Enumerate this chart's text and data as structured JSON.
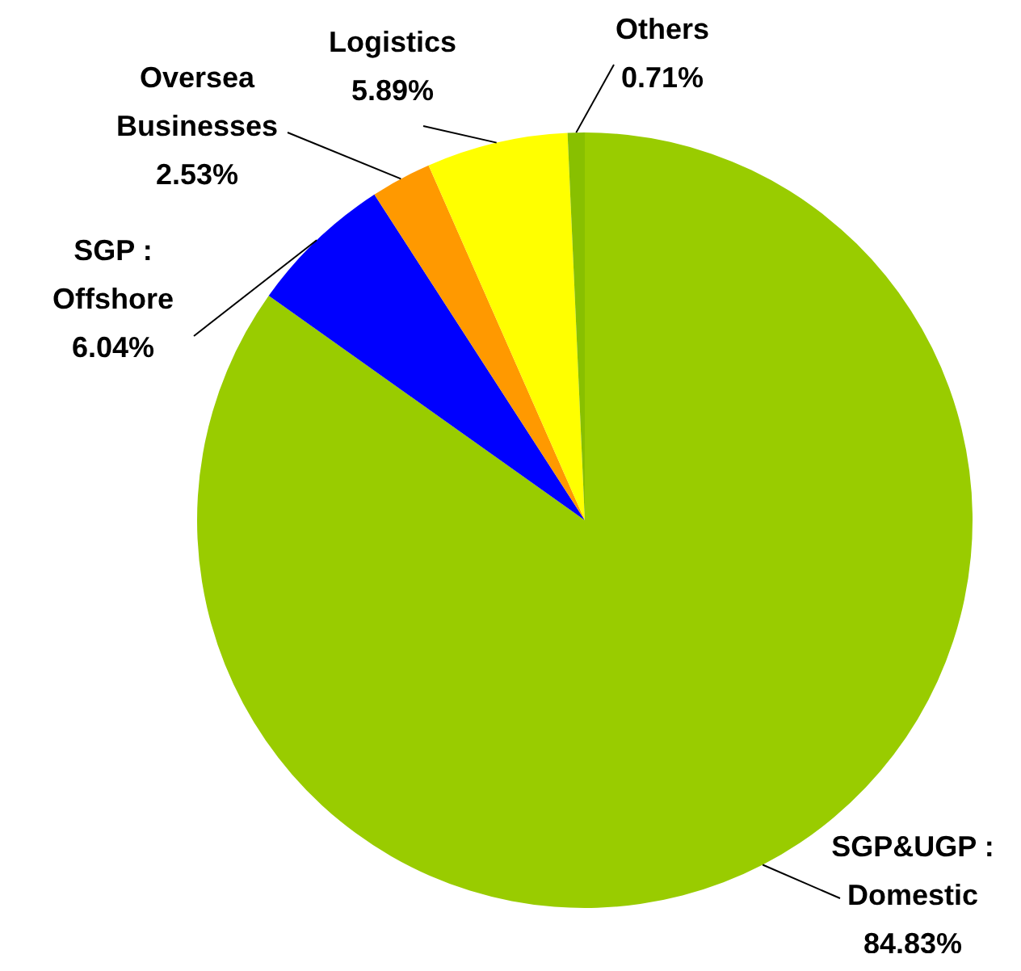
{
  "chart_data": {
    "type": "pie",
    "categories": [
      "SGP&UGP :\nDomestic",
      "SGP :\nOffshore",
      "Oversea\nBusinesses",
      "Logistics",
      "Others"
    ],
    "values": [
      84.83,
      6.04,
      2.53,
      5.89,
      0.71
    ],
    "colors": [
      "#99cc00",
      "#0000ff",
      "#ff9900",
      "#ffff00",
      "#88c000"
    ],
    "value_labels": [
      "84.83%",
      "6.04%",
      "2.53%",
      "5.89%",
      "0.71%"
    ]
  }
}
